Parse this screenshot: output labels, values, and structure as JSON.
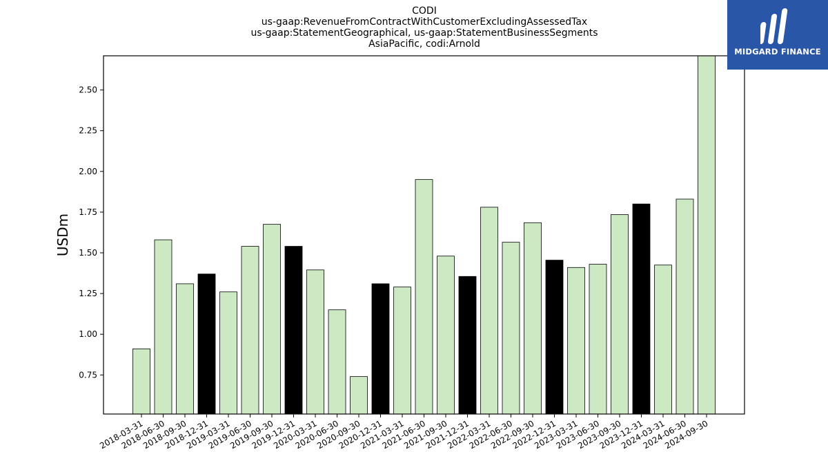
{
  "chart_data": {
    "type": "bar",
    "title_lines": [
      "CODI",
      "us-gaap:RevenueFromContractWithCustomerExcludingAssessedTax",
      "us-gaap:StatementGeographical, us-gaap:StatementBusinessSegments",
      "AsiaPacific, codi:Arnold"
    ],
    "ylabel": "USDm",
    "xlabel": "",
    "ylim": [
      0.51,
      2.71
    ],
    "yticks": [
      0.75,
      1.0,
      1.25,
      1.5,
      1.75,
      2.0,
      2.25,
      2.5
    ],
    "ytick_labels": [
      "0.75",
      "1.00",
      "1.25",
      "1.50",
      "1.75",
      "2.00",
      "2.25",
      "2.50"
    ],
    "categories": [
      "2018-03-31",
      "2018-06-30",
      "2018-09-30",
      "2018-12-31",
      "2019-03-31",
      "2019-06-30",
      "2019-09-30",
      "2019-12-31",
      "2020-03-31",
      "2020-06-30",
      "2020-09-30",
      "2020-12-31",
      "2021-03-31",
      "2021-06-30",
      "2021-09-30",
      "2021-12-31",
      "2022-03-31",
      "2022-06-30",
      "2022-09-30",
      "2022-12-31",
      "2023-03-31",
      "2023-06-30",
      "2023-09-30",
      "2023-12-31",
      "2024-03-31",
      "2024-06-30",
      "2024-09-30"
    ],
    "values": [
      0.91,
      1.58,
      1.31,
      1.37,
      1.26,
      1.54,
      1.675,
      1.54,
      1.395,
      1.15,
      0.74,
      1.31,
      1.29,
      1.95,
      1.48,
      1.355,
      1.78,
      1.565,
      1.685,
      1.455,
      1.41,
      1.43,
      1.735,
      1.8,
      1.425,
      1.83,
      2.71
    ],
    "highlight_categories": [
      "2018-12-31",
      "2019-12-31",
      "2020-12-31",
      "2021-12-31",
      "2022-12-31",
      "2023-12-31"
    ],
    "colors": {
      "bar": "#cde9c4",
      "highlight": "#000000",
      "edge": "#000000"
    },
    "grid": false,
    "legend": "none"
  },
  "logo": {
    "text": "MIDGARD FINANCE",
    "background": "#2a56a8",
    "icon": "midgard-logo-icon"
  }
}
